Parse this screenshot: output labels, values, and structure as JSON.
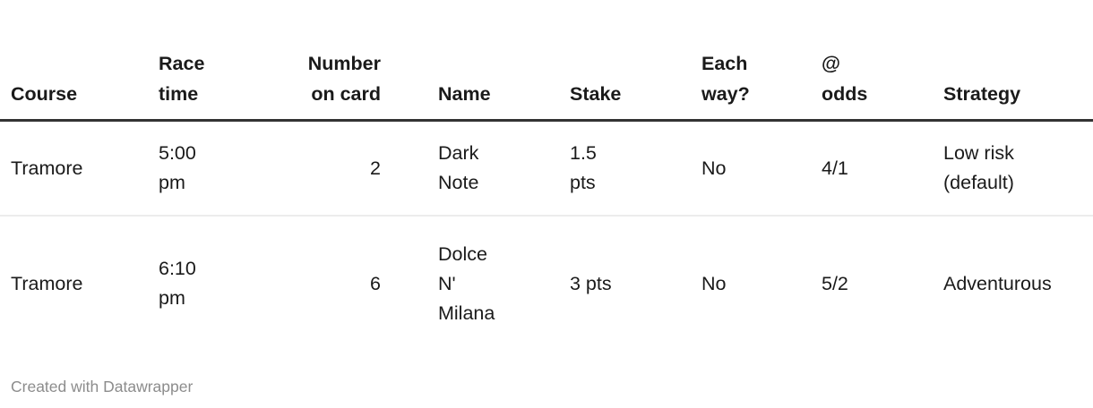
{
  "chart_data": {
    "type": "table",
    "title": "",
    "columns": [
      "Course",
      "Race time",
      "Number on card",
      "Name",
      "Stake",
      "Each way?",
      "@ odds",
      "Strategy"
    ],
    "rows": [
      [
        "Tramore",
        "5:00 pm",
        "2",
        "Dark Note",
        "1.5 pts",
        "No",
        "4/1",
        "Low risk (default)"
      ],
      [
        "Tramore",
        "6:10 pm",
        "6",
        "Dolce N' Milana",
        "3 pts",
        "No",
        "5/2",
        "Adventurous"
      ]
    ],
    "credit": "Created with Datawrapper"
  },
  "table": {
    "columns": [
      {
        "id": "course",
        "label": "Course",
        "align": "left"
      },
      {
        "id": "race_time",
        "label": "Race\ntime",
        "align": "left"
      },
      {
        "id": "number_on_card",
        "label": "Number\non card",
        "align": "right"
      },
      {
        "id": "name",
        "label": "Name",
        "align": "left"
      },
      {
        "id": "stake",
        "label": "Stake",
        "align": "left"
      },
      {
        "id": "each_way",
        "label": "Each\nway?",
        "align": "left"
      },
      {
        "id": "odds",
        "label": "@\nodds",
        "align": "left"
      },
      {
        "id": "strategy",
        "label": "Strategy",
        "align": "left"
      }
    ],
    "rows": [
      {
        "course": "Tramore",
        "race_time": "5:00\npm",
        "number_on_card": "2",
        "name": "Dark\nNote",
        "stake": "1.5\npts",
        "each_way": "No",
        "odds": "4/1",
        "strategy": "Low risk\n(default)"
      },
      {
        "course": "Tramore",
        "race_time": "6:10\npm",
        "number_on_card": "6",
        "name": "Dolce\nN'\nMilana",
        "stake": "3 pts",
        "each_way": "No",
        "odds": "5/2",
        "strategy": "Adventurous"
      }
    ]
  },
  "footer": {
    "credit": "Created with Datawrapper"
  },
  "colors": {
    "text": "#1a1a1a",
    "header_rule": "#333333",
    "row_divider": "#ececec",
    "footer_text": "#8c8c8c",
    "background": "#ffffff"
  }
}
